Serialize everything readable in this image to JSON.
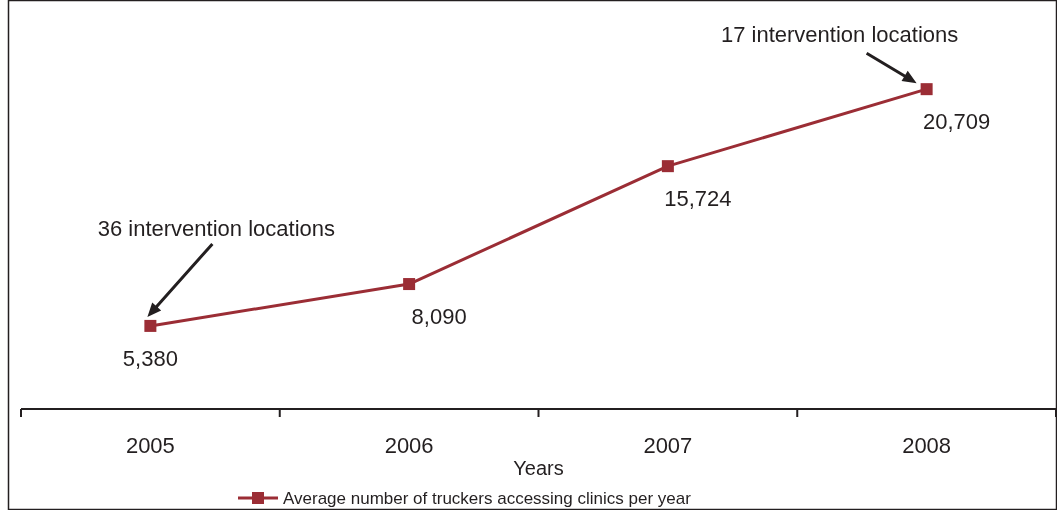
{
  "chart_data": {
    "type": "line",
    "xlabel": "Years",
    "categories": [
      "2005",
      "2006",
      "2007",
      "2008"
    ],
    "series": [
      {
        "name": "Average number of truckers accessing clinics per year",
        "color": "#9b2d35",
        "values": [
          5380,
          8090,
          15724,
          20709
        ],
        "value_labels": [
          "5,380",
          "8,090",
          "15,724",
          "20,709"
        ]
      }
    ],
    "marker": "square",
    "line_style": "solid",
    "legend": "bottom",
    "annotations": [
      "36 intervention locations",
      {
        "text": "17 intervention locations",
        "x": "2008",
        "y": 20709
      }
    ]
  }
}
